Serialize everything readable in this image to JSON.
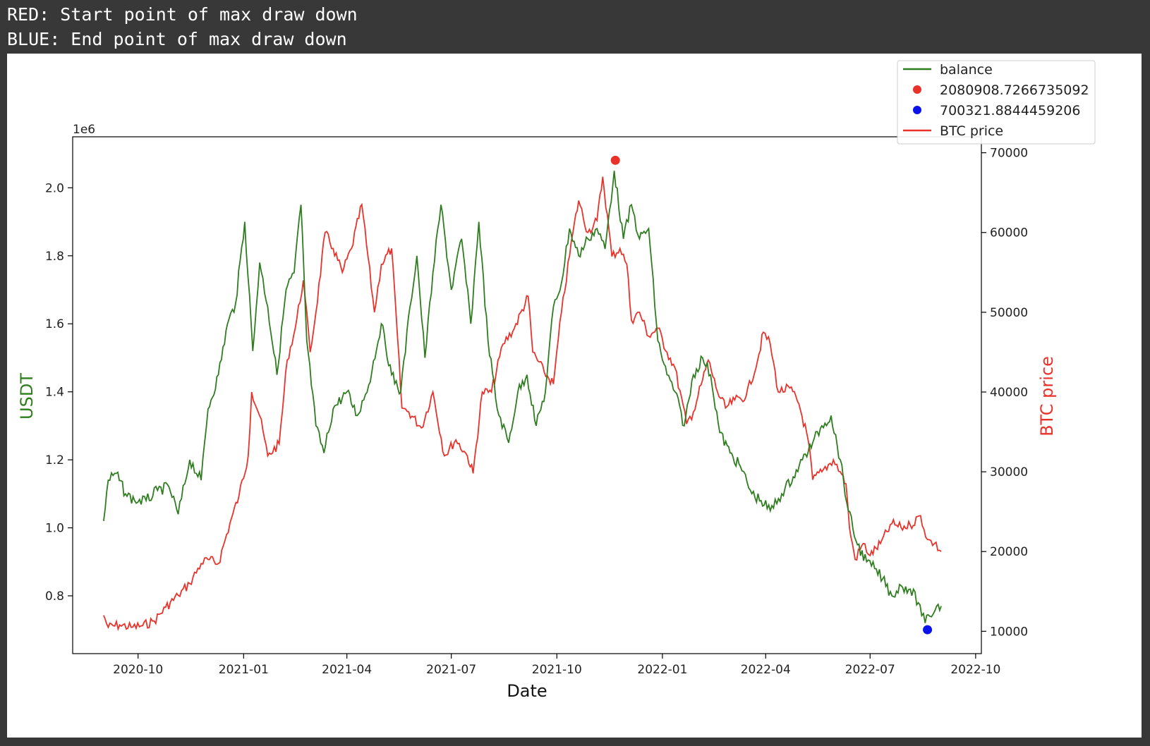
{
  "output_text": {
    "line1": "RED: Start point of max draw down",
    "line2": "BLUE: End point of max draw down"
  },
  "colors": {
    "background": "#383838",
    "balance": "#2e7d1e",
    "btc": "#e8322a",
    "start_marker": "#e8322a",
    "end_marker": "#0a14ea"
  },
  "chart_data": {
    "type": "line",
    "x_axis": {
      "label": "Date",
      "range": [
        "2020-08-05",
        "2022-10-06"
      ],
      "ticks": [
        "2020-10",
        "2021-01",
        "2021-04",
        "2021-07",
        "2021-10",
        "2022-01",
        "2022-04",
        "2022-07",
        "2022-10"
      ]
    },
    "y_left": {
      "label": "USDT",
      "offset_text": "1e6",
      "range": [
        0.63,
        2.15
      ],
      "ticks": [
        "0.8",
        "1.0",
        "1.2",
        "1.4",
        "1.6",
        "1.8",
        "2.0"
      ]
    },
    "y_right": {
      "label": "BTC price",
      "range": [
        7200,
        72000
      ],
      "ticks": [
        "10000",
        "20000",
        "30000",
        "40000",
        "50000",
        "60000",
        "70000"
      ]
    },
    "legend": {
      "location": "top-right",
      "entries": [
        "balance",
        "2080908.7266735092",
        "700321.8844459206",
        "BTC price"
      ]
    },
    "series": [
      {
        "name": "balance",
        "axis": "left",
        "unit_scale": "1e6",
        "points": [
          [
            "2020-09-01",
            1.02
          ],
          [
            "2020-09-05",
            1.14
          ],
          [
            "2020-09-12",
            1.16
          ],
          [
            "2020-09-20",
            1.1
          ],
          [
            "2020-09-28",
            1.08
          ],
          [
            "2020-10-08",
            1.08
          ],
          [
            "2020-10-18",
            1.11
          ],
          [
            "2020-10-28",
            1.12
          ],
          [
            "2020-11-05",
            1.04
          ],
          [
            "2020-11-15",
            1.2
          ],
          [
            "2020-11-25",
            1.14
          ],
          [
            "2020-12-01",
            1.35
          ],
          [
            "2020-12-10",
            1.45
          ],
          [
            "2020-12-18",
            1.6
          ],
          [
            "2020-12-25",
            1.66
          ],
          [
            "2021-01-02",
            1.9
          ],
          [
            "2021-01-09",
            1.52
          ],
          [
            "2021-01-15",
            1.78
          ],
          [
            "2021-01-22",
            1.65
          ],
          [
            "2021-01-30",
            1.45
          ],
          [
            "2021-02-07",
            1.7
          ],
          [
            "2021-02-14",
            1.75
          ],
          [
            "2021-02-20",
            1.95
          ],
          [
            "2021-02-25",
            1.55
          ],
          [
            "2021-03-05",
            1.3
          ],
          [
            "2021-03-12",
            1.22
          ],
          [
            "2021-03-20",
            1.35
          ],
          [
            "2021-04-01",
            1.4
          ],
          [
            "2021-04-10",
            1.33
          ],
          [
            "2021-04-20",
            1.42
          ],
          [
            "2021-05-01",
            1.6
          ],
          [
            "2021-05-10",
            1.45
          ],
          [
            "2021-05-18",
            1.4
          ],
          [
            "2021-05-26",
            1.65
          ],
          [
            "2021-06-01",
            1.8
          ],
          [
            "2021-06-08",
            1.5
          ],
          [
            "2021-06-15",
            1.75
          ],
          [
            "2021-06-22",
            1.95
          ],
          [
            "2021-07-01",
            1.7
          ],
          [
            "2021-07-10",
            1.85
          ],
          [
            "2021-07-18",
            1.6
          ],
          [
            "2021-07-25",
            1.9
          ],
          [
            "2021-08-02",
            1.55
          ],
          [
            "2021-08-10",
            1.35
          ],
          [
            "2021-08-20",
            1.25
          ],
          [
            "2021-08-28",
            1.4
          ],
          [
            "2021-09-05",
            1.45
          ],
          [
            "2021-09-13",
            1.3
          ],
          [
            "2021-09-21",
            1.4
          ],
          [
            "2021-09-28",
            1.65
          ],
          [
            "2021-10-05",
            1.72
          ],
          [
            "2021-10-12",
            1.88
          ],
          [
            "2021-10-20",
            1.8
          ],
          [
            "2021-10-28",
            1.85
          ],
          [
            "2021-11-05",
            1.88
          ],
          [
            "2021-11-12",
            1.82
          ],
          [
            "2021-11-20",
            2.05
          ],
          [
            "2021-11-28",
            1.85
          ],
          [
            "2021-12-05",
            1.95
          ],
          [
            "2021-12-12",
            1.85
          ],
          [
            "2021-12-20",
            1.88
          ],
          [
            "2021-12-28",
            1.55
          ],
          [
            "2022-01-05",
            1.45
          ],
          [
            "2022-01-12",
            1.4
          ],
          [
            "2022-01-20",
            1.3
          ],
          [
            "2022-01-28",
            1.45
          ],
          [
            "2022-02-05",
            1.5
          ],
          [
            "2022-02-12",
            1.45
          ],
          [
            "2022-02-20",
            1.28
          ],
          [
            "2022-03-01",
            1.22
          ],
          [
            "2022-03-10",
            1.18
          ],
          [
            "2022-03-20",
            1.1
          ],
          [
            "2022-03-28",
            1.08
          ],
          [
            "2022-04-05",
            1.05
          ],
          [
            "2022-04-15",
            1.1
          ],
          [
            "2022-04-25",
            1.15
          ],
          [
            "2022-05-03",
            1.2
          ],
          [
            "2022-05-12",
            1.25
          ],
          [
            "2022-05-20",
            1.3
          ],
          [
            "2022-05-28",
            1.33
          ],
          [
            "2022-06-05",
            1.2
          ],
          [
            "2022-06-12",
            1.05
          ],
          [
            "2022-06-20",
            0.95
          ],
          [
            "2022-06-28",
            0.9
          ],
          [
            "2022-07-05",
            0.88
          ],
          [
            "2022-07-12",
            0.85
          ],
          [
            "2022-07-20",
            0.8
          ],
          [
            "2022-07-28",
            0.83
          ],
          [
            "2022-08-05",
            0.82
          ],
          [
            "2022-08-12",
            0.78
          ],
          [
            "2022-08-18",
            0.72
          ],
          [
            "2022-08-22",
            0.74
          ],
          [
            "2022-08-28",
            0.77
          ],
          [
            "2022-09-01",
            0.77
          ]
        ]
      },
      {
        "name": "BTC price",
        "axis": "right",
        "points": [
          [
            "2020-09-01",
            12000
          ],
          [
            "2020-09-05",
            10500
          ],
          [
            "2020-09-15",
            10800
          ],
          [
            "2020-09-25",
            10500
          ],
          [
            "2020-10-05",
            10700
          ],
          [
            "2020-10-15",
            11300
          ],
          [
            "2020-10-25",
            13000
          ],
          [
            "2020-11-05",
            14500
          ],
          [
            "2020-11-15",
            16000
          ],
          [
            "2020-11-25",
            18500
          ],
          [
            "2020-12-01",
            19000
          ],
          [
            "2020-12-10",
            18500
          ],
          [
            "2020-12-20",
            23500
          ],
          [
            "2020-12-28",
            27000
          ],
          [
            "2021-01-05",
            32000
          ],
          [
            "2021-01-08",
            40000
          ],
          [
            "2021-01-15",
            37000
          ],
          [
            "2021-01-22",
            32000
          ],
          [
            "2021-02-01",
            33500
          ],
          [
            "2021-02-08",
            44000
          ],
          [
            "2021-02-15",
            48000
          ],
          [
            "2021-02-22",
            54000
          ],
          [
            "2021-02-28",
            45000
          ],
          [
            "2021-03-05",
            50000
          ],
          [
            "2021-03-13",
            60000
          ],
          [
            "2021-03-20",
            58000
          ],
          [
            "2021-03-28",
            55000
          ],
          [
            "2021-04-05",
            58000
          ],
          [
            "2021-04-14",
            63500
          ],
          [
            "2021-04-25",
            50000
          ],
          [
            "2021-05-01",
            56000
          ],
          [
            "2021-05-10",
            58000
          ],
          [
            "2021-05-19",
            38000
          ],
          [
            "2021-05-25",
            37500
          ],
          [
            "2021-06-05",
            35500
          ],
          [
            "2021-06-15",
            40000
          ],
          [
            "2021-06-25",
            32000
          ],
          [
            "2021-07-05",
            34000
          ],
          [
            "2021-07-15",
            32000
          ],
          [
            "2021-07-20",
            29800
          ],
          [
            "2021-07-28",
            40000
          ],
          [
            "2021-08-05",
            40000
          ],
          [
            "2021-08-15",
            46000
          ],
          [
            "2021-08-25",
            48000
          ],
          [
            "2021-09-06",
            52000
          ],
          [
            "2021-09-10",
            45000
          ],
          [
            "2021-09-20",
            42500
          ],
          [
            "2021-09-28",
            41000
          ],
          [
            "2021-10-05",
            50000
          ],
          [
            "2021-10-15",
            60000
          ],
          [
            "2021-10-20",
            64000
          ],
          [
            "2021-10-28",
            60000
          ],
          [
            "2021-11-05",
            61500
          ],
          [
            "2021-11-10",
            67000
          ],
          [
            "2021-11-18",
            57000
          ],
          [
            "2021-11-25",
            58000
          ],
          [
            "2021-12-01",
            56000
          ],
          [
            "2021-12-05",
            49000
          ],
          [
            "2021-12-12",
            50000
          ],
          [
            "2021-12-20",
            47000
          ],
          [
            "2021-12-28",
            48000
          ],
          [
            "2022-01-05",
            45000
          ],
          [
            "2022-01-12",
            43000
          ],
          [
            "2022-01-22",
            36000
          ],
          [
            "2022-01-28",
            37500
          ],
          [
            "2022-02-05",
            41500
          ],
          [
            "2022-02-10",
            44000
          ],
          [
            "2022-02-18",
            40000
          ],
          [
            "2022-02-25",
            38000
          ],
          [
            "2022-03-05",
            39000
          ],
          [
            "2022-03-15",
            39500
          ],
          [
            "2022-03-25",
            44000
          ],
          [
            "2022-03-30",
            47500
          ],
          [
            "2022-04-05",
            46000
          ],
          [
            "2022-04-12",
            40000
          ],
          [
            "2022-04-22",
            40500
          ],
          [
            "2022-04-30",
            38500
          ],
          [
            "2022-05-08",
            34000
          ],
          [
            "2022-05-12",
            29000
          ],
          [
            "2022-05-20",
            30000
          ],
          [
            "2022-05-30",
            31500
          ],
          [
            "2022-06-05",
            30000
          ],
          [
            "2022-06-10",
            28500
          ],
          [
            "2022-06-13",
            23000
          ],
          [
            "2022-06-18",
            19000
          ],
          [
            "2022-06-25",
            21000
          ],
          [
            "2022-07-01",
            19500
          ],
          [
            "2022-07-10",
            21000
          ],
          [
            "2022-07-20",
            23500
          ],
          [
            "2022-07-28",
            23000
          ],
          [
            "2022-08-05",
            23300
          ],
          [
            "2022-08-14",
            24500
          ],
          [
            "2022-08-20",
            21500
          ],
          [
            "2022-08-26",
            21000
          ],
          [
            "2022-09-01",
            20000
          ]
        ]
      }
    ],
    "markers": [
      {
        "name": "2080908.7266735092",
        "date": "2021-11-21",
        "value": 2.0809087,
        "axis": "left",
        "color": "#e8322a"
      },
      {
        "name": "700321.8844459206",
        "date": "2022-08-20",
        "value": 0.7003219,
        "axis": "left",
        "color": "#0a14ea"
      }
    ]
  }
}
